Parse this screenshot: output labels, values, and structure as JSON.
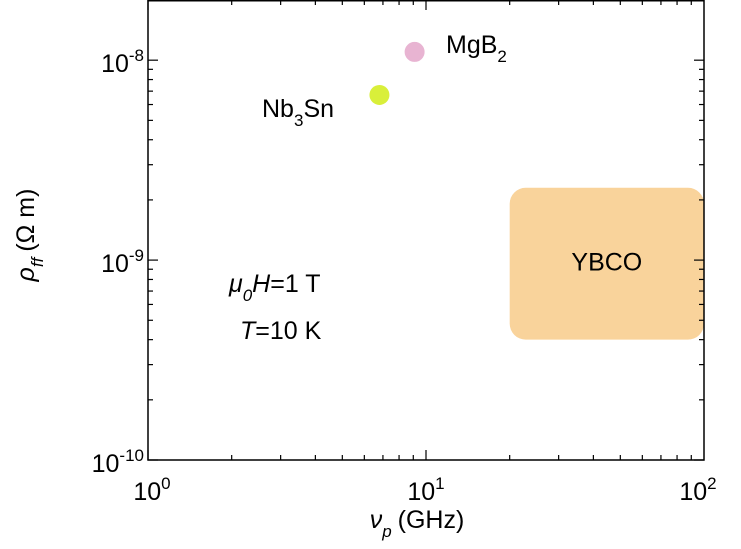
{
  "chart_data": {
    "type": "scatter",
    "x_scale": "log",
    "y_scale": "log",
    "xlim": [
      1,
      100
    ],
    "ylim": [
      1e-10,
      2e-08
    ],
    "xlabel": {
      "symbol": "ν",
      "subscript": "p",
      "unit": "(GHz)"
    },
    "ylabel": {
      "symbol": "ρ",
      "subscript": "ff",
      "unit": "(Ω m)"
    },
    "x_ticks": [
      {
        "value": 1,
        "base": "10",
        "exp": "0"
      },
      {
        "value": 10,
        "base": "10",
        "exp": "1"
      },
      {
        "value": 100,
        "base": "10",
        "exp": "2"
      }
    ],
    "y_ticks": [
      {
        "value": 1e-10,
        "base": "10",
        "exp": "-10"
      },
      {
        "value": 1e-09,
        "base": "10",
        "exp": "-9"
      },
      {
        "value": 1e-08,
        "base": "10",
        "exp": "-8"
      }
    ],
    "grid": false,
    "points": [
      {
        "material": "MgB",
        "subscript": "2",
        "x": 9.1,
        "y": 1.1e-08,
        "color": "#e8b4d2"
      },
      {
        "material": "Nb",
        "subscript": "3",
        "suffix": "Sn",
        "x": 6.8,
        "y": 6.7e-09,
        "color": "#d9ef3a"
      }
    ],
    "regions": [
      {
        "label": "YBCO",
        "x_range": [
          20,
          100
        ],
        "y_range": [
          4e-10,
          2.3e-09
        ],
        "color": "#f9d39b"
      }
    ],
    "annotations": {
      "field": {
        "symbol": "μ",
        "subscript": "0",
        "var": "H",
        "value": "=1 T"
      },
      "temperature": {
        "var": "T",
        "value": "=10 K"
      }
    }
  }
}
